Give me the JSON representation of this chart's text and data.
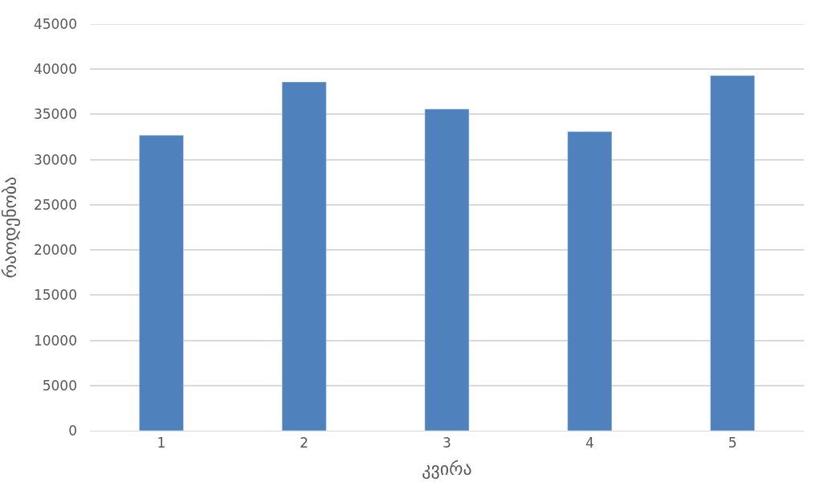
{
  "chart_data": {
    "type": "bar",
    "xlabel": "კვირა",
    "ylabel": "რაოდენობა",
    "categories": [
      "1",
      "2",
      "3",
      "4",
      "5"
    ],
    "values": [
      32700,
      38600,
      35600,
      33100,
      39300
    ],
    "color": "#4f81bd",
    "ylim": [
      0,
      45000
    ],
    "yticks": [
      0,
      5000,
      10000,
      15000,
      20000,
      25000,
      30000,
      35000,
      40000,
      45000
    ],
    "grid": "y"
  }
}
